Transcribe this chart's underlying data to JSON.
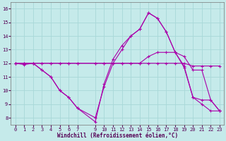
{
  "xlabel": "Windchill (Refroidissement éolien,°C)",
  "bg_color": "#c5eaea",
  "line_color": "#aa00aa",
  "xlim": [
    -0.5,
    23.5
  ],
  "ylim": [
    7.5,
    16.5
  ],
  "xticks": [
    0,
    1,
    2,
    3,
    4,
    5,
    6,
    7,
    9,
    10,
    11,
    12,
    13,
    14,
    15,
    16,
    17,
    18,
    19,
    20,
    21,
    22,
    23
  ],
  "xtick_labels": [
    "0",
    "1",
    "2",
    "3",
    "4",
    "5",
    "6",
    "7",
    "9",
    "10",
    "11",
    "12",
    "13",
    "14",
    "15",
    "16",
    "17",
    "18",
    "19",
    "20",
    "21",
    "22",
    "23"
  ],
  "yticks": [
    8,
    9,
    10,
    11,
    12,
    13,
    14,
    15,
    16
  ],
  "grid_color": "#a8d8d8",
  "series": [
    {
      "x": [
        0,
        1,
        2,
        3,
        4,
        5,
        6,
        7,
        9,
        10,
        11,
        12,
        13,
        14,
        15,
        16,
        17,
        18,
        19,
        20,
        21,
        22,
        23
      ],
      "y": [
        12,
        11.9,
        12.0,
        11.5,
        11.0,
        10.0,
        9.5,
        8.7,
        7.7,
        10.5,
        12.3,
        13.3,
        14.0,
        14.5,
        15.7,
        15.3,
        14.3,
        12.8,
        11.7,
        9.5,
        9.3,
        9.3,
        8.5
      ]
    },
    {
      "x": [
        0,
        1,
        2,
        3,
        4,
        5,
        6,
        7,
        9,
        10,
        11,
        12,
        13,
        14,
        15,
        16,
        17,
        18,
        19,
        20,
        21,
        22,
        23
      ],
      "y": [
        12,
        12,
        12,
        12,
        12,
        12,
        12,
        12,
        12,
        12,
        12,
        12,
        12,
        12,
        12.5,
        12.8,
        12.8,
        12.8,
        12.5,
        11.5,
        11.5,
        9.3,
        8.5
      ]
    },
    {
      "x": [
        0,
        1,
        2,
        3,
        4,
        5,
        6,
        7,
        9,
        10,
        11,
        12,
        13,
        14,
        15,
        16,
        17,
        18,
        19,
        20,
        21,
        22,
        23
      ],
      "y": [
        12,
        12,
        12,
        12,
        12,
        12,
        12,
        12,
        12,
        12,
        12,
        12,
        12,
        12,
        12,
        12,
        12,
        12,
        12,
        11.8,
        11.8,
        11.8,
        11.8
      ]
    },
    {
      "x": [
        0,
        1,
        2,
        3,
        4,
        5,
        6,
        7,
        9,
        10,
        11,
        12,
        13,
        14,
        15,
        16,
        17,
        18,
        19,
        20,
        21,
        22,
        23
      ],
      "y": [
        12,
        12,
        12,
        11.5,
        11,
        10,
        9.5,
        8.7,
        8.0,
        10.3,
        12.0,
        13.0,
        14.0,
        14.5,
        15.7,
        15.3,
        14.3,
        12.8,
        11.8,
        9.5,
        9.0,
        8.5,
        8.5
      ]
    }
  ]
}
